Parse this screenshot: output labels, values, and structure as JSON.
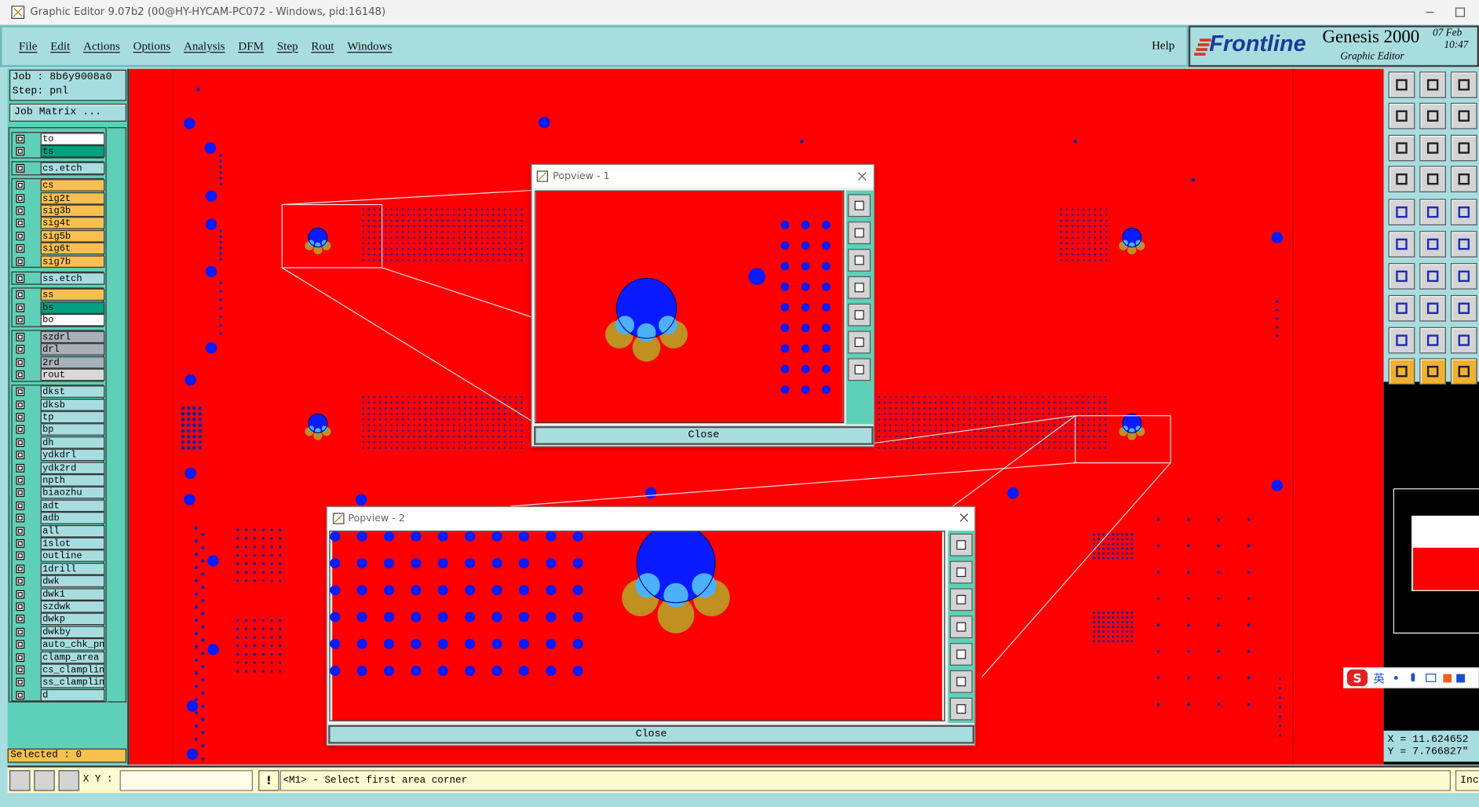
{
  "window_title": "Graphic Editor 9.07b2 (00@HY-HYCAM-PC072 - Windows, pid:16148)",
  "menu": [
    "File",
    "Edit",
    "Actions",
    "Options",
    "Analysis",
    "DFM",
    "Step",
    "Rout",
    "Windows"
  ],
  "help": "Help",
  "brand": {
    "logo": "Frontline",
    "product": "Genesis 2000",
    "subtitle": "Graphic Editor",
    "date": "07 Feb",
    "time": "10:47"
  },
  "job": "Job : 8b6y9008a0",
  "step": "Step: pnl",
  "job_matrix": "Job Matrix ...",
  "layer_groups": [
    [
      {
        "name": "to",
        "color": "#ffffff"
      },
      {
        "name": "ts",
        "color": "#00a080"
      }
    ],
    [
      {
        "name": "cs.etch",
        "color": "#a8dde0"
      }
    ],
    [
      {
        "name": "cs",
        "color": "#f8c050"
      },
      {
        "name": "sig2t",
        "color": "#f8c050"
      },
      {
        "name": "sig3b",
        "color": "#f8c050"
      },
      {
        "name": "sig4t",
        "color": "#f8c050"
      },
      {
        "name": "sig5b",
        "color": "#f8c050"
      },
      {
        "name": "sig6t",
        "color": "#f8c050"
      },
      {
        "name": "sig7b",
        "color": "#f8c050"
      }
    ],
    [
      {
        "name": "ss.etch",
        "color": "#a8dde0"
      }
    ],
    [
      {
        "name": "ss",
        "color": "#f8c050"
      },
      {
        "name": "bs",
        "color": "#00a080"
      },
      {
        "name": "bo",
        "color": "#ffffff"
      }
    ],
    [
      {
        "name": "szdrl",
        "color": "#a8b0b8"
      },
      {
        "name": "drl",
        "color": "#a8b0b8"
      },
      {
        "name": "2rd",
        "color": "#a8b0b8"
      },
      {
        "name": "rout",
        "color": "#d8d8d8"
      }
    ],
    [
      {
        "name": "dkst",
        "color": "#a8dde0"
      },
      {
        "name": "dksb",
        "color": "#a8dde0"
      },
      {
        "name": "tp",
        "color": "#a8dde0"
      },
      {
        "name": "bp",
        "color": "#a8dde0"
      },
      {
        "name": "dh",
        "color": "#a8dde0"
      },
      {
        "name": "ydkdrl",
        "color": "#a8dde0"
      },
      {
        "name": "ydk2rd",
        "color": "#a8dde0"
      },
      {
        "name": "npth",
        "color": "#a8dde0"
      },
      {
        "name": "biaozhu",
        "color": "#a8dde0"
      },
      {
        "name": "adt",
        "color": "#a8dde0"
      },
      {
        "name": "adb",
        "color": "#a8dde0"
      },
      {
        "name": "all",
        "color": "#a8dde0"
      },
      {
        "name": "1slot",
        "color": "#a8dde0"
      },
      {
        "name": "outline",
        "color": "#a8dde0"
      },
      {
        "name": "1drill",
        "color": "#a8dde0"
      },
      {
        "name": "dwk",
        "color": "#a8dde0"
      },
      {
        "name": "dwk1",
        "color": "#a8dde0"
      },
      {
        "name": "szdwk",
        "color": "#a8dde0"
      },
      {
        "name": "dwkp",
        "color": "#a8dde0"
      },
      {
        "name": "dwkby",
        "color": "#a8dde0"
      },
      {
        "name": "auto_chk_pnl",
        "color": "#a8dde0"
      },
      {
        "name": "clamp_area",
        "color": "#a8dde0"
      },
      {
        "name": "cs_clampline",
        "color": "#a8dde0"
      },
      {
        "name": "ss_clampline",
        "color": "#a8dde0"
      },
      {
        "name": "d",
        "color": "#a8dde0"
      }
    ]
  ],
  "selected": "Selected : 0",
  "xy_label": "X Y :",
  "prompt": "<M1> - Select first area corner",
  "coords": {
    "x": "X = 11.624652",
    "y": "Y = 7.766827\""
  },
  "popviews": [
    {
      "title": "Popview - 1",
      "button": "Close"
    },
    {
      "title": "Popview - 2",
      "button": "Close"
    }
  ],
  "status_right": "Inc",
  "ime": "英"
}
